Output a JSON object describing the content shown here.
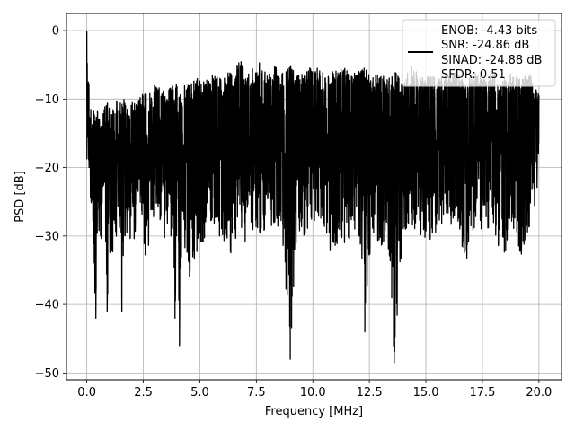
{
  "chart_data": {
    "type": "line",
    "xlabel": "Frequency [MHz]",
    "ylabel": "PSD [dB]",
    "xlim": [
      -0.9,
      21.0
    ],
    "ylim": [
      -51.0,
      2.5
    ],
    "xticks": [
      0.0,
      2.5,
      5.0,
      7.5,
      10.0,
      12.5,
      15.0,
      17.5,
      20.0
    ],
    "xtick_labels": [
      "0.0",
      "2.5",
      "5.0",
      "7.5",
      "10.0",
      "12.5",
      "15.0",
      "17.5",
      "20.0"
    ],
    "yticks": [
      0,
      -10,
      -20,
      -30,
      -40,
      -50
    ],
    "ytick_labels": [
      "0",
      "−10",
      "−20",
      "−30",
      "−40",
      "−50"
    ],
    "grid": true,
    "legend_position": "upper right",
    "legend_entries": [
      "ENOB: -4.43 bits",
      "SNR: -24.86 dB",
      "SINAD: -24.88 dB",
      "SFDR: 0.51"
    ],
    "series": [
      {
        "color": "#000000",
        "x": [
          0.0,
          0.05,
          0.1,
          0.15,
          0.2,
          0.3,
          0.4,
          0.45,
          0.5,
          0.6,
          0.7,
          0.8,
          0.9,
          1.0,
          1.05,
          1.1,
          1.2,
          1.3,
          1.4,
          1.5,
          1.55,
          1.7,
          1.9,
          2.1,
          2.3,
          2.5,
          2.6,
          2.7,
          2.8,
          3.0,
          3.2,
          3.5,
          3.8,
          3.9,
          4.0,
          4.1,
          4.2,
          4.3,
          4.5,
          4.7,
          5.0,
          5.3,
          5.6,
          6.0,
          6.3,
          6.5,
          6.8,
          7.0,
          7.5,
          7.7,
          8.0,
          8.3,
          8.6,
          9.0,
          9.3,
          9.6,
          10.0,
          10.4,
          10.8,
          11.2,
          11.6,
          12.0,
          12.3,
          12.6,
          13.0,
          13.3,
          13.6,
          14.0,
          14.4,
          14.8,
          15.2,
          15.6,
          16.0,
          16.4,
          16.8,
          17.2,
          17.6,
          18.0,
          18.4,
          18.8,
          19.2,
          19.6,
          20.0
        ],
        "upper": [
          0.0,
          -6,
          -7,
          -9,
          -13,
          -11,
          -12,
          -11,
          -12,
          -13,
          -12,
          -11,
          -10,
          -11,
          -12,
          -12,
          -11,
          -10,
          -11,
          -10,
          -9,
          -10,
          -11,
          -10,
          -10,
          -9,
          -9,
          -10,
          -9,
          -8,
          -8,
          -9,
          -8,
          -9,
          -6,
          -8,
          -10,
          -8,
          -8,
          -7,
          -7,
          -7,
          -6,
          -7,
          -6,
          -6,
          -4,
          -6,
          -5,
          -4,
          -6,
          -5,
          -6,
          -5,
          -6,
          -6,
          -5,
          -6,
          -6,
          -5,
          -6,
          -6,
          -5,
          -7,
          -6,
          -7,
          -6,
          -7,
          -5,
          -7,
          -6,
          -7,
          -6,
          -6,
          -7,
          -6,
          -7,
          -6,
          -7,
          -6,
          -7,
          -6,
          -9
        ],
        "lower": [
          -24,
          -18,
          -22,
          -26,
          -26,
          -33,
          -42,
          -30,
          -28,
          -36,
          -26,
          -26,
          -41,
          -30,
          -37,
          -39,
          -28,
          -32,
          -30,
          -28,
          -41,
          -30,
          -32,
          -31,
          -28,
          -30,
          -35,
          -33,
          -30,
          -29,
          -28,
          -31,
          -32,
          -42,
          -30,
          -46,
          -34,
          -31,
          -37,
          -34,
          -31,
          -31,
          -29,
          -31,
          -34,
          -31,
          -29,
          -32,
          -29,
          -31,
          -30,
          -30,
          -28,
          -48,
          -29,
          -30,
          -28,
          -28,
          -33,
          -31,
          -31,
          -28,
          -44,
          -29,
          -32,
          -30,
          -48,
          -29,
          -29,
          -30,
          -31,
          -29,
          -28,
          -29,
          -34,
          -28,
          -31,
          -29,
          -34,
          -29,
          -33,
          -29,
          -24
        ],
        "spikes": [
          [
            0.0,
            0.0
          ],
          [
            0.4,
            -42
          ],
          [
            0.9,
            -41
          ],
          [
            1.55,
            -41
          ],
          [
            3.9,
            -42
          ],
          [
            4.1,
            -46
          ],
          [
            9.0,
            -48
          ],
          [
            12.3,
            -44
          ],
          [
            13.6,
            -48.5
          ]
        ]
      }
    ]
  }
}
